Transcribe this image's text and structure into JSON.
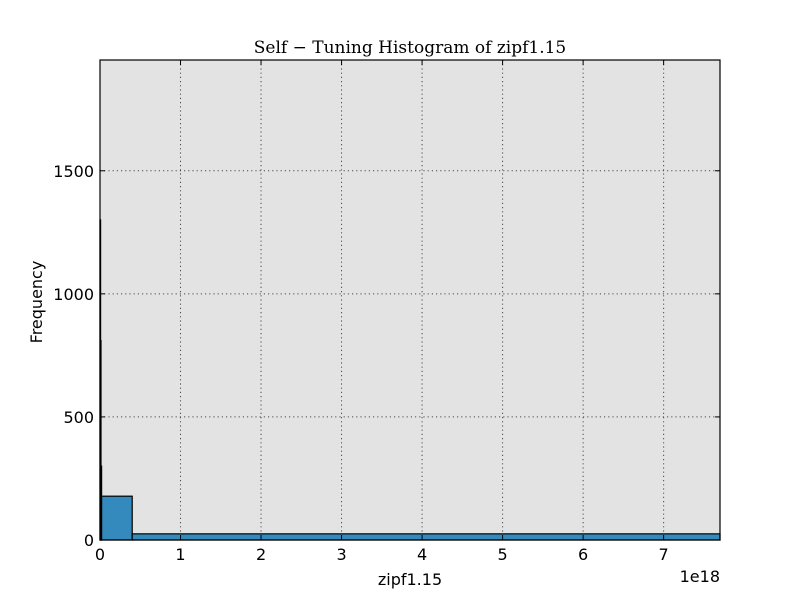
{
  "chart_data": {
    "type": "bar",
    "title": "Self − Tuning Histogram of zipf1.15",
    "xlabel": "zipf1.15",
    "ylabel": "Frequency",
    "x_offset_label": "1e18",
    "xlim": [
      0,
      7.7
    ],
    "ylim": [
      0,
      1950
    ],
    "x_ticks": [
      0,
      1,
      2,
      3,
      4,
      5,
      6,
      7
    ],
    "y_ticks": [
      0,
      500,
      1000,
      1500
    ],
    "grid": true,
    "background": "#e3e3e3",
    "bar_color": "#348abd",
    "bins": [
      {
        "x0": 0.0,
        "x1": 0.005,
        "value": 1300
      },
      {
        "x0": 0.005,
        "x1": 0.01,
        "value": 810
      },
      {
        "x0": 0.01,
        "x1": 0.02,
        "value": 300
      },
      {
        "x0": 0.02,
        "x1": 0.4,
        "value": 178
      },
      {
        "x0": 0.4,
        "x1": 7.7,
        "value": 25
      }
    ]
  }
}
